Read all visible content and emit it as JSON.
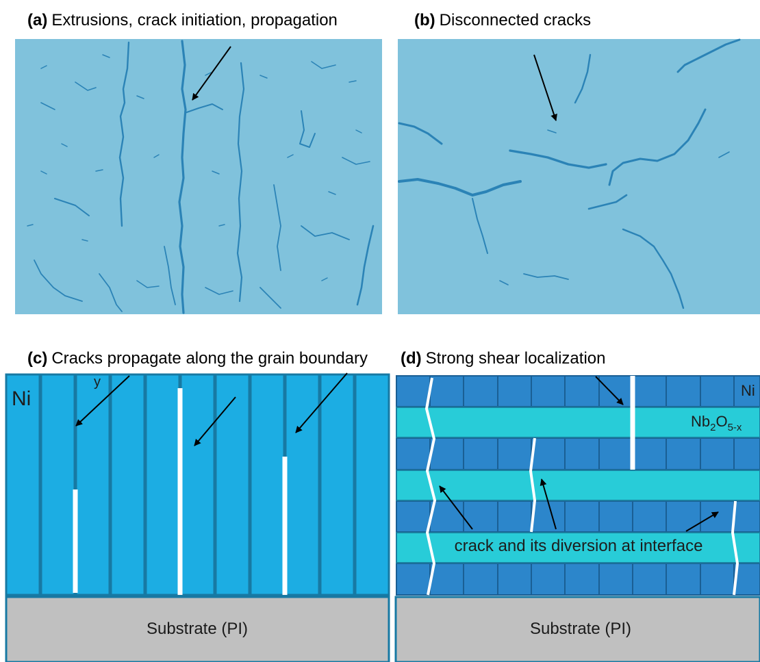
{
  "panels": {
    "a": {
      "tag": "(a)",
      "caption": "Extrusions, crack initiation, propagation"
    },
    "b": {
      "tag": "(b)",
      "caption": "Disconnected cracks"
    },
    "c": {
      "tag": "(c)",
      "caption": "Cracks propagate along the grain boundary",
      "layer_label": "Ni",
      "stray_label": "y",
      "substrate_label": "Substrate (PI)"
    },
    "d": {
      "tag": "(d)",
      "caption": "Strong shear localization",
      "ni_label": "Ni",
      "oxide_base": "Nb",
      "oxide_sub1": "2",
      "oxide_mid": "O",
      "oxide_sub2": "5-x",
      "crack_label": "crack and its diversion at interface",
      "substrate_label": "Substrate (PI)"
    }
  },
  "colors": {
    "micrograph_bg": "#80c2dc",
    "crack": "#2b83b6",
    "ni_grain": "#1cade3",
    "ni_outline": "#1779a3",
    "ni_block": "#2c86cb",
    "oxide": "#28ccd8",
    "substrate": "#c0c0c0",
    "crack_line": "#ffffff"
  },
  "icons": [
    "arrow-icon"
  ]
}
